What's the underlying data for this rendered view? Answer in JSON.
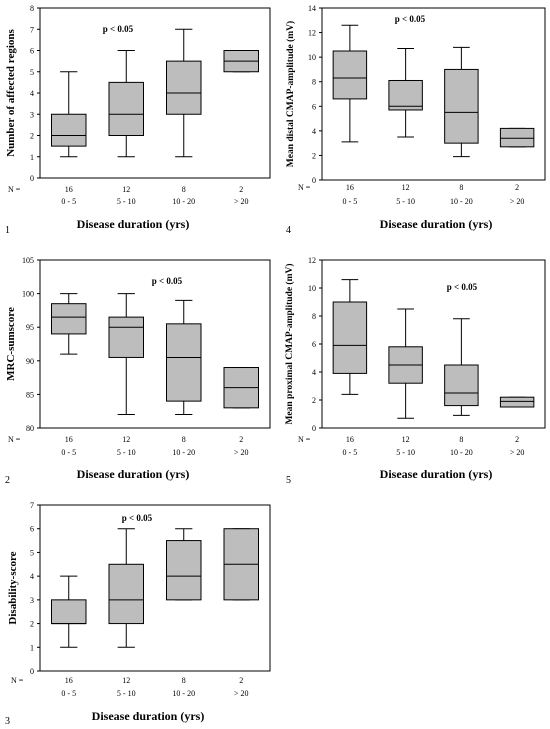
{
  "chart_data": [
    {
      "type": "box",
      "panel_number": "1",
      "title": "",
      "ylabel": "Number of affected regions",
      "xlabel": "Disease duration (yrs)",
      "n_label": "N =",
      "annotation": "p < 0.05",
      "ylim": [
        0,
        8
      ],
      "yticks": [
        "0",
        "1",
        "2",
        "3",
        "4",
        "5",
        "6",
        "7",
        "8"
      ],
      "categories": [
        "0 - 5",
        "5 - 10",
        "10 - 20",
        "> 20"
      ],
      "n": [
        "16",
        "12",
        "8",
        "2"
      ],
      "boxes": [
        {
          "min": 1,
          "q1": 1.5,
          "median": 2,
          "q3": 3,
          "max": 5
        },
        {
          "min": 1,
          "q1": 2,
          "median": 3,
          "q3": 4.5,
          "max": 6
        },
        {
          "min": 1,
          "q1": 3,
          "median": 4,
          "q3": 5.5,
          "max": 7
        },
        {
          "min": 5,
          "q1": 5,
          "median": 5.5,
          "q3": 6,
          "max": 6
        }
      ]
    },
    {
      "type": "box",
      "panel_number": "2",
      "title": "",
      "ylabel": "MRC-sumscore",
      "xlabel": "Disease duration (yrs)",
      "n_label": "N =",
      "annotation": "p < 0.05",
      "ylim": [
        80,
        105
      ],
      "yticks": [
        "80",
        "85",
        "90",
        "95",
        "100",
        "105"
      ],
      "categories": [
        "0 - 5",
        "5 - 10",
        "10 - 20",
        "> 20"
      ],
      "n": [
        "16",
        "12",
        "8",
        "2"
      ],
      "boxes": [
        {
          "min": 91,
          "q1": 94,
          "median": 96.5,
          "q3": 98.5,
          "max": 100
        },
        {
          "min": 82,
          "q1": 90.5,
          "median": 95,
          "q3": 96.5,
          "max": 100
        },
        {
          "min": 82,
          "q1": 84,
          "median": 90.5,
          "q3": 95.5,
          "max": 99
        },
        {
          "min": 83,
          "q1": 83,
          "median": 86,
          "q3": 89,
          "max": 89
        }
      ]
    },
    {
      "type": "box",
      "panel_number": "3",
      "title": "",
      "ylabel": "Disability-score",
      "xlabel": "Disease duration (yrs)",
      "n_label": "N =",
      "annotation": "p < 0.05",
      "ylim": [
        0,
        7
      ],
      "yticks": [
        "0",
        "1",
        "2",
        "3",
        "4",
        "5",
        "6",
        "7"
      ],
      "categories": [
        "0 - 5",
        "5 - 10",
        "10 - 20",
        "> 20"
      ],
      "n": [
        "16",
        "12",
        "8",
        "2"
      ],
      "boxes": [
        {
          "min": 1,
          "q1": 2,
          "median": 2,
          "q3": 3,
          "max": 4
        },
        {
          "min": 1,
          "q1": 2,
          "median": 3,
          "q3": 4.5,
          "max": 6
        },
        {
          "min": 3,
          "q1": 3,
          "median": 4,
          "q3": 5.5,
          "max": 6
        },
        {
          "min": 3,
          "q1": 3,
          "median": 4.5,
          "q3": 6,
          "max": 6
        }
      ]
    },
    {
      "type": "box",
      "panel_number": "4",
      "title": "",
      "ylabel": "Mean distal CMAP-amplitude (mV)",
      "xlabel": "Disease duration (yrs)",
      "n_label": "N =",
      "annotation": "p < 0.05",
      "ylim": [
        0,
        14
      ],
      "yticks": [
        "0",
        "2",
        "4",
        "6",
        "8",
        "10",
        "12",
        "14"
      ],
      "categories": [
        "0 - 5",
        "5 - 10",
        "10 - 20",
        "> 20"
      ],
      "n": [
        "16",
        "12",
        "8",
        "2"
      ],
      "boxes": [
        {
          "min": 3.1,
          "q1": 6.6,
          "median": 8.3,
          "q3": 10.5,
          "max": 12.6
        },
        {
          "min": 3.5,
          "q1": 5.7,
          "median": 6,
          "q3": 8.1,
          "max": 10.7
        },
        {
          "min": 1.9,
          "q1": 3,
          "median": 5.5,
          "q3": 9,
          "max": 10.8
        },
        {
          "min": 2.7,
          "q1": 2.7,
          "median": 3.4,
          "q3": 4.2,
          "max": 4.2
        }
      ]
    },
    {
      "type": "box",
      "panel_number": "5",
      "title": "",
      "ylabel": "Mean proximal CMAP-amplitude (mV)",
      "xlabel": "Disease duration (yrs)",
      "n_label": "N =",
      "annotation": "p < 0.05",
      "ylim": [
        0,
        12
      ],
      "yticks": [
        "0",
        "2",
        "4",
        "6",
        "8",
        "10",
        "12"
      ],
      "categories": [
        "0 - 5",
        "5 - 10",
        "10 - 20",
        "> 20"
      ],
      "n": [
        "16",
        "12",
        "8",
        "2"
      ],
      "boxes": [
        {
          "min": 2.4,
          "q1": 3.9,
          "median": 5.9,
          "q3": 9,
          "max": 10.6
        },
        {
          "min": 0.7,
          "q1": 3.2,
          "median": 4.5,
          "q3": 5.8,
          "max": 8.5
        },
        {
          "min": 0.9,
          "q1": 1.6,
          "median": 2.5,
          "q3": 4.5,
          "max": 7.8
        },
        {
          "min": 1.5,
          "q1": 1.5,
          "median": 1.9,
          "q3": 2.2,
          "max": 2.2
        }
      ]
    }
  ],
  "style": {
    "box_fill": "#bdbdbd",
    "line_color": "#000000",
    "background": "#ffffff"
  }
}
